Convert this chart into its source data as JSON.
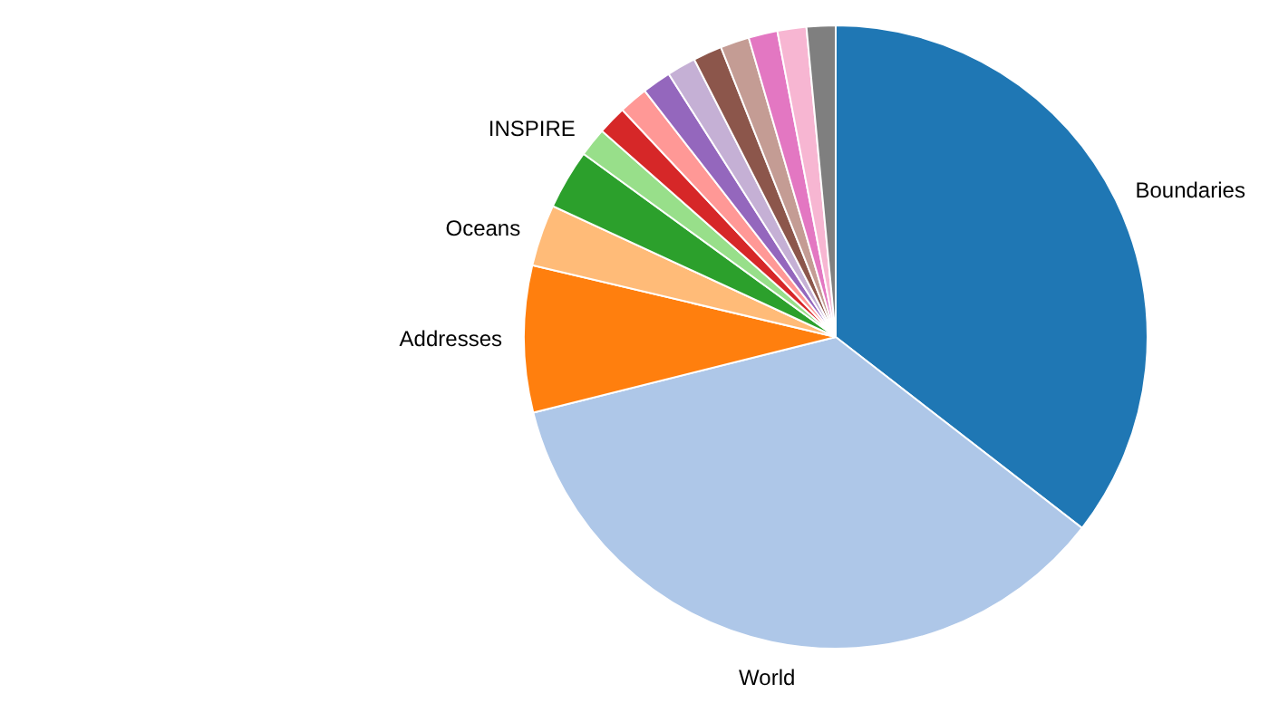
{
  "chart_data": {
    "type": "pie",
    "categories": [
      "Boundaries",
      "World",
      "Addresses",
      "Oceans",
      null,
      "INSPIRE",
      null,
      null,
      null,
      null,
      null,
      null,
      null,
      null,
      null
    ],
    "values": [
      35.5,
      35.6,
      7.6,
      3.2,
      3.1,
      1.5,
      1.5,
      1.5,
      1.5,
      1.5,
      1.5,
      1.5,
      1.5,
      1.5,
      1.5
    ],
    "colors": [
      "#1f77b4",
      "#aec7e8",
      "#ff7f0e",
      "#ffbb78",
      "#2ca02c",
      "#98df8a",
      "#d62728",
      "#ff9896",
      "#9467bd",
      "#c5b0d5",
      "#8c564b",
      "#c49c94",
      "#e377c2",
      "#f7b6d2",
      "#7f7f7f"
    ],
    "legend": false
  }
}
